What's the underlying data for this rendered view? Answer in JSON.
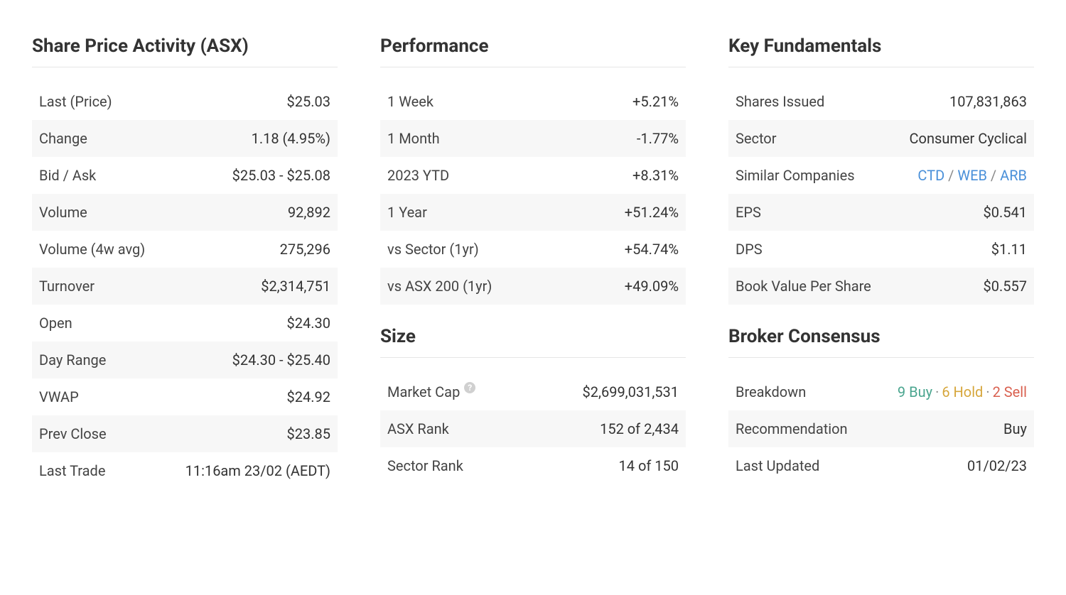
{
  "colors": {
    "text": "#333333",
    "muted": "#444444",
    "alt_row_bg": "#f7f7f7",
    "border": "#e6e6e6",
    "positive": "#3f9f88",
    "negative": "#d9604f",
    "link": "#4a90d9",
    "buy": "#4aa58f",
    "hold": "#d6a63b",
    "sell": "#d9604f",
    "help_bg": "#d0d0d0"
  },
  "share_price": {
    "title": "Share Price Activity (ASX)",
    "rows": [
      {
        "label": "Last (Price)",
        "value": "$25.03"
      },
      {
        "label": "Change",
        "value": "1.18 (4.95%)",
        "style": "pos"
      },
      {
        "label": "Bid / Ask",
        "value": "$25.03 - $25.08"
      },
      {
        "label": "Volume",
        "value": "92,892"
      },
      {
        "label": "Volume (4w avg)",
        "value": "275,296"
      },
      {
        "label": "Turnover",
        "value": "$2,314,751"
      },
      {
        "label": "Open",
        "value": "$24.30"
      },
      {
        "label": "Day Range",
        "value": "$24.30 - $25.40"
      },
      {
        "label": "VWAP",
        "value": "$24.92"
      },
      {
        "label": "Prev Close",
        "value": "$23.85"
      },
      {
        "label": "Last Trade",
        "value": "11:16am 23/02 (AEDT)"
      }
    ]
  },
  "performance": {
    "title": "Performance",
    "rows": [
      {
        "label": "1 Week",
        "value": "+5.21%",
        "style": "pos"
      },
      {
        "label": "1 Month",
        "value": "-1.77%",
        "style": "neg"
      },
      {
        "label": "2023 YTD",
        "value": "+8.31%",
        "style": "pos"
      },
      {
        "label": "1 Year",
        "value": "+51.24%",
        "style": "pos"
      },
      {
        "label": "vs Sector (1yr)",
        "value": "+54.74%",
        "style": "pos"
      },
      {
        "label": "vs ASX 200 (1yr)",
        "value": "+49.09%",
        "style": "pos"
      }
    ]
  },
  "size": {
    "title": "Size",
    "rows": [
      {
        "label": "Market Cap",
        "help": true,
        "value": "$2,699,031,531"
      },
      {
        "label": "ASX Rank",
        "value": "152 of 2,434"
      },
      {
        "label": "Sector Rank",
        "value": "14 of 150"
      }
    ]
  },
  "fundamentals": {
    "title": "Key Fundamentals",
    "rows": [
      {
        "label": "Shares Issued",
        "value": "107,831,863"
      },
      {
        "label": "Sector",
        "value": "Consumer Cyclical"
      },
      {
        "label": "Similar Companies"
      },
      {
        "label": "EPS",
        "value": "$0.541"
      },
      {
        "label": "DPS",
        "value": "$1.11"
      },
      {
        "label": "Book Value Per Share",
        "value": "$0.557"
      }
    ],
    "similar": [
      "CTD",
      "WEB",
      "ARB"
    ],
    "sep": " / "
  },
  "broker": {
    "title": "Broker Consensus",
    "breakdown_label": "Breakdown",
    "breakdown": {
      "buy": "9 Buy",
      "hold": "6 Hold",
      "sell": "2 Sell"
    },
    "dot": "·",
    "recommendation_label": "Recommendation",
    "recommendation": "Buy",
    "updated_label": "Last Updated",
    "updated": "01/02/23"
  }
}
